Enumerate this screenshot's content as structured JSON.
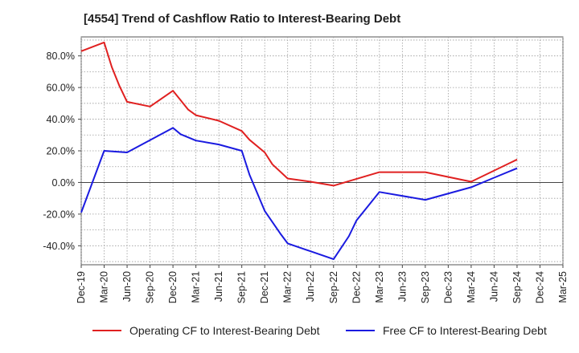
{
  "chart_data": {
    "type": "line",
    "title": "[4554]  Trend of Cashflow Ratio to Interest-Bearing Debt",
    "xlabel": "",
    "ylabel": "",
    "x_ticks": [
      "Dec-19",
      "Mar-20",
      "Jun-20",
      "Sep-20",
      "Dec-20",
      "Mar-21",
      "Jun-21",
      "Sep-21",
      "Dec-21",
      "Mar-22",
      "Jun-22",
      "Sep-22",
      "Dec-22",
      "Mar-23",
      "Jun-23",
      "Sep-23",
      "Dec-23",
      "Mar-24",
      "Jun-24",
      "Sep-24",
      "Dec-24",
      "Mar-25"
    ],
    "y_ticks": [
      "80.0%",
      "60.0%",
      "40.0%",
      "20.0%",
      "0.0%",
      "-20.0%",
      "-40.0%"
    ],
    "y_tick_values": [
      80,
      60,
      40,
      20,
      0,
      -20,
      -40
    ],
    "ylim": [
      -52,
      92
    ],
    "grid": true,
    "legend_position": "bottom",
    "series": [
      {
        "name": "Operating CF to Interest-Bearing Debt",
        "color": "#e02020",
        "points": [
          [
            "Dec-19",
            83
          ],
          [
            "Mar-20",
            88.5
          ],
          [
            "Apr-20",
            73
          ],
          [
            "May-20",
            61
          ],
          [
            "Jun-20",
            51
          ],
          [
            "Sep-20",
            48
          ],
          [
            "Dec-20",
            58
          ],
          [
            "Jan-21",
            52
          ],
          [
            "Feb-21",
            46
          ],
          [
            "Mar-21",
            42.5
          ],
          [
            "Jun-21",
            39
          ],
          [
            "Sep-21",
            32.5
          ],
          [
            "Oct-21",
            27
          ],
          [
            "Dec-21",
            19
          ],
          [
            "Jan-22",
            11.5
          ],
          [
            "Mar-22",
            2.5
          ],
          [
            "Jun-22",
            0.5
          ],
          [
            "Sep-22",
            -2
          ],
          [
            "Mar-23",
            6.5
          ],
          [
            "Jun-23",
            6.5
          ],
          [
            "Sep-23",
            6.5
          ],
          [
            "Mar-24",
            0.5
          ],
          [
            "Sep-24",
            14.5
          ]
        ]
      },
      {
        "name": "Free CF to Interest-Bearing Debt",
        "color": "#1a1ae0",
        "points": [
          [
            "Dec-19",
            -19
          ],
          [
            "Mar-20",
            20
          ],
          [
            "Jun-20",
            19
          ],
          [
            "Dec-20",
            34.5
          ],
          [
            "Jan-21",
            30.5
          ],
          [
            "Mar-21",
            26.5
          ],
          [
            "Jun-21",
            24
          ],
          [
            "Sep-21",
            20
          ],
          [
            "Oct-21",
            5
          ],
          [
            "Dec-21",
            -18
          ],
          [
            "Feb-22",
            -32
          ],
          [
            "Mar-22",
            -38.5
          ],
          [
            "Jun-22",
            -43.5
          ],
          [
            "Sep-22",
            -48.5
          ],
          [
            "Nov-22",
            -34
          ],
          [
            "Dec-22",
            -24
          ],
          [
            "Mar-23",
            -6
          ],
          [
            "Sep-23",
            -11
          ],
          [
            "Mar-24",
            -3
          ],
          [
            "Jun-24",
            3
          ],
          [
            "Sep-24",
            9
          ]
        ]
      }
    ]
  }
}
